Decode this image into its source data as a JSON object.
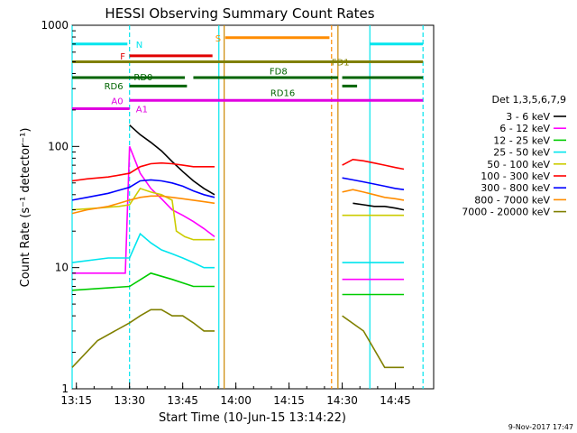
{
  "chart_data": {
    "type": "line",
    "title": "HESSI Observing Summary Count Rates",
    "xlabel": "Start Time (10-Jun-15 13:14:22)",
    "ylabel": "Count Rate (s⁻¹ detector⁻¹)",
    "footer": "9-Nov-2017 17:47",
    "x_range_min": [
      13.23,
      14.88
    ],
    "y_range": [
      1,
      1000
    ],
    "y_scale": "log",
    "x_ticks": [
      {
        "v": 13.25,
        "label": "13:15"
      },
      {
        "v": 13.5,
        "label": "13:30"
      },
      {
        "v": 13.75,
        "label": "13:45"
      },
      {
        "v": 14.0,
        "label": "14:00"
      },
      {
        "v": 14.25,
        "label": "14:15"
      },
      {
        "v": 14.5,
        "label": "14:30"
      },
      {
        "v": 14.75,
        "label": "14:45"
      }
    ],
    "y_ticks": [
      {
        "v": 1,
        "label": "1"
      },
      {
        "v": 10,
        "label": "10"
      },
      {
        "v": 100,
        "label": "100"
      },
      {
        "v": 1000,
        "label": "1000"
      }
    ],
    "legend": {
      "title": "Det 1,3,5,6,7,9",
      "placement": "right"
    },
    "series": [
      {
        "name": "3 - 6 keV",
        "color": "#000000",
        "x": [
          13.5,
          13.55,
          13.6,
          13.65,
          13.7,
          13.75,
          13.8,
          13.85,
          13.9,
          14.55,
          14.6,
          14.65,
          14.7,
          14.75,
          14.79
        ],
        "y": [
          150,
          125,
          108,
          92,
          75,
          62,
          52,
          45,
          40,
          34,
          33,
          32,
          32,
          31,
          30
        ]
      },
      {
        "name": "6 - 12 keV",
        "color": "#ff00ff",
        "x": [
          13.23,
          13.3,
          13.4,
          13.48,
          13.5,
          13.55,
          13.6,
          13.65,
          13.7,
          13.75,
          13.8,
          13.85,
          13.9,
          14.5,
          14.55,
          14.6,
          14.65,
          14.7,
          14.75,
          14.79
        ],
        "y": [
          9,
          9,
          9,
          9,
          100,
          60,
          45,
          37,
          30,
          27,
          24,
          21,
          18,
          8,
          8,
          8,
          8,
          8,
          8,
          8
        ]
      },
      {
        "name": "12 - 25 keV",
        "color": "#00cc00",
        "x": [
          13.23,
          13.5,
          13.6,
          13.7,
          13.8,
          13.9,
          14.5,
          14.6,
          14.7,
          14.79
        ],
        "y": [
          6.5,
          7,
          9,
          8,
          7,
          7,
          6,
          6,
          6,
          6
        ]
      },
      {
        "name": "25 - 50 keV",
        "color": "#00e5ee",
        "x": [
          13.23,
          13.4,
          13.5,
          13.55,
          13.6,
          13.65,
          13.7,
          13.75,
          13.8,
          13.85,
          13.9,
          14.5,
          14.6,
          14.7,
          14.79
        ],
        "y": [
          11,
          12,
          12,
          19,
          16,
          14,
          13,
          12,
          11,
          10,
          10,
          11,
          11,
          11,
          11
        ]
      },
      {
        "name": "50 - 100 keV",
        "color": "#cccc00",
        "x": [
          13.23,
          13.35,
          13.45,
          13.5,
          13.55,
          13.6,
          13.65,
          13.7,
          13.72,
          13.76,
          13.8,
          13.85,
          13.9,
          14.5,
          14.6,
          14.7,
          14.79
        ],
        "y": [
          30,
          31,
          32,
          33,
          45,
          42,
          40,
          36,
          20,
          18,
          17,
          17,
          17,
          27,
          27,
          27,
          27
        ]
      },
      {
        "name": "100 - 300 keV",
        "color": "#ff0000",
        "x": [
          13.23,
          13.3,
          13.4,
          13.5,
          13.55,
          13.6,
          13.65,
          13.7,
          13.75,
          13.8,
          13.85,
          13.9,
          14.5,
          14.55,
          14.6,
          14.65,
          14.7,
          14.75,
          14.79
        ],
        "y": [
          52,
          54,
          56,
          60,
          68,
          72,
          73,
          72,
          70,
          68,
          68,
          68,
          70,
          78,
          76,
          73,
          70,
          67,
          65
        ]
      },
      {
        "name": "300 - 800 keV",
        "color": "#0000ff",
        "x": [
          13.23,
          13.3,
          13.4,
          13.5,
          13.55,
          13.6,
          13.65,
          13.7,
          13.75,
          13.8,
          13.85,
          13.9,
          14.5,
          14.55,
          14.6,
          14.65,
          14.7,
          14.75,
          14.79
        ],
        "y": [
          36,
          38,
          41,
          46,
          52,
          53,
          52,
          50,
          47,
          43,
          40,
          38,
          55,
          53,
          51,
          49,
          47,
          45,
          44
        ]
      },
      {
        "name": "800 - 7000 keV",
        "color": "#ff8c00",
        "x": [
          13.23,
          13.3,
          13.4,
          13.5,
          13.55,
          13.6,
          13.65,
          13.7,
          13.75,
          13.8,
          13.85,
          13.9,
          14.5,
          14.55,
          14.6,
          14.65,
          14.7,
          14.75,
          14.79
        ],
        "y": [
          28,
          30,
          32,
          36,
          38,
          39,
          39,
          38,
          37,
          36,
          35,
          34,
          42,
          44,
          42,
          40,
          38,
          37,
          36
        ]
      },
      {
        "name": "7000 - 20000 keV",
        "color": "#808000",
        "x": [
          13.23,
          13.35,
          13.5,
          13.55,
          13.6,
          13.65,
          13.7,
          13.75,
          13.8,
          13.85,
          13.9,
          14.5,
          14.6,
          14.7,
          14.79
        ],
        "y": [
          1.5,
          2.5,
          3.5,
          4,
          4.5,
          4.5,
          4,
          4,
          3.5,
          3,
          3,
          4,
          3,
          1.5,
          1.5
        ]
      }
    ],
    "verticals": [
      {
        "x": 13.23,
        "color": "#00e5ee",
        "style": "solid"
      },
      {
        "x": 13.5,
        "color": "#00e5ee",
        "style": "dashed"
      },
      {
        "x": 13.92,
        "color": "#00e5ee",
        "style": "solid"
      },
      {
        "x": 13.945,
        "color": "#cc8800",
        "style": "solid"
      },
      {
        "x": 14.45,
        "color": "#ff8c00",
        "style": "dashed"
      },
      {
        "x": 14.48,
        "color": "#cc8800",
        "style": "solid"
      },
      {
        "x": 14.63,
        "color": "#00e5ee",
        "style": "solid"
      },
      {
        "x": 14.88,
        "color": "#00e5ee",
        "style": "dashed"
      }
    ],
    "flag_bars": [
      {
        "label": "N",
        "color": "#00e5ee",
        "y": 700,
        "segments": [
          [
            13.23,
            13.49
          ],
          [
            14.63,
            14.88
          ]
        ]
      },
      {
        "label": "S",
        "color": "#ff8c00",
        "y": 790,
        "segments": [
          [
            13.95,
            14.44
          ]
        ]
      },
      {
        "label": "F",
        "color": "#e00000",
        "y": 560,
        "segments": [
          [
            13.5,
            13.89
          ]
        ]
      },
      {
        "label": "FD1",
        "color": "#808000",
        "y": 500,
        "segments": [
          [
            13.23,
            14.88
          ]
        ]
      },
      {
        "label": "FD8",
        "color": "#006400",
        "y": 370,
        "segments": [
          [
            13.23,
            13.76
          ],
          [
            13.8,
            14.48
          ],
          [
            14.5,
            14.88
          ]
        ]
      },
      {
        "label": "RD0",
        "color": "#006400",
        "y": 370,
        "segments": []
      },
      {
        "label": "RD6",
        "color": "#006400",
        "y": 315,
        "segments": [
          [
            13.5,
            13.77
          ],
          [
            14.5,
            14.57
          ]
        ]
      },
      {
        "label": "RD16",
        "color": "#006400",
        "y": 315,
        "segments": []
      },
      {
        "label": "A0",
        "color": "#e000e0",
        "y": 240,
        "segments": [
          [
            13.5,
            14.88
          ]
        ]
      },
      {
        "label": "A1",
        "color": "#e000e0",
        "y": 205,
        "segments": [
          [
            13.23,
            13.5
          ]
        ]
      }
    ]
  }
}
